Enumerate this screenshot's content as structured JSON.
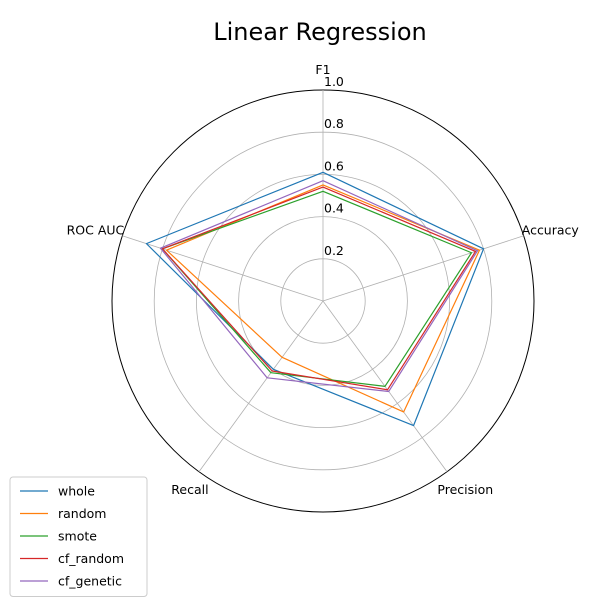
{
  "chart_data": {
    "type": "radar",
    "title": "Linear Regression",
    "axes": [
      "F1",
      "Accuracy",
      "Precision",
      "Recall",
      "ROC AUC"
    ],
    "rlim": [
      0,
      1.0
    ],
    "rticks": [
      "0.2",
      "0.4",
      "0.6",
      "0.8",
      "1.0"
    ],
    "rtick_values": [
      0.2,
      0.4,
      0.6,
      0.8,
      1.0
    ],
    "grid": true,
    "legend_position": "lower-left",
    "series": [
      {
        "name": "whole",
        "color": "#1f77b4",
        "values": [
          0.61,
          0.8,
          0.73,
          0.4,
          0.88
        ]
      },
      {
        "name": "random",
        "color": "#ff7f0e",
        "values": [
          0.55,
          0.78,
          0.65,
          0.33,
          0.78
        ]
      },
      {
        "name": "smote",
        "color": "#2ca02c",
        "values": [
          0.52,
          0.74,
          0.5,
          0.42,
          0.8
        ]
      },
      {
        "name": "cf_random",
        "color": "#d62728",
        "values": [
          0.54,
          0.76,
          0.52,
          0.41,
          0.8
        ]
      },
      {
        "name": "cf_genetic",
        "color": "#9467bd",
        "values": [
          0.57,
          0.77,
          0.53,
          0.45,
          0.81
        ]
      }
    ]
  }
}
